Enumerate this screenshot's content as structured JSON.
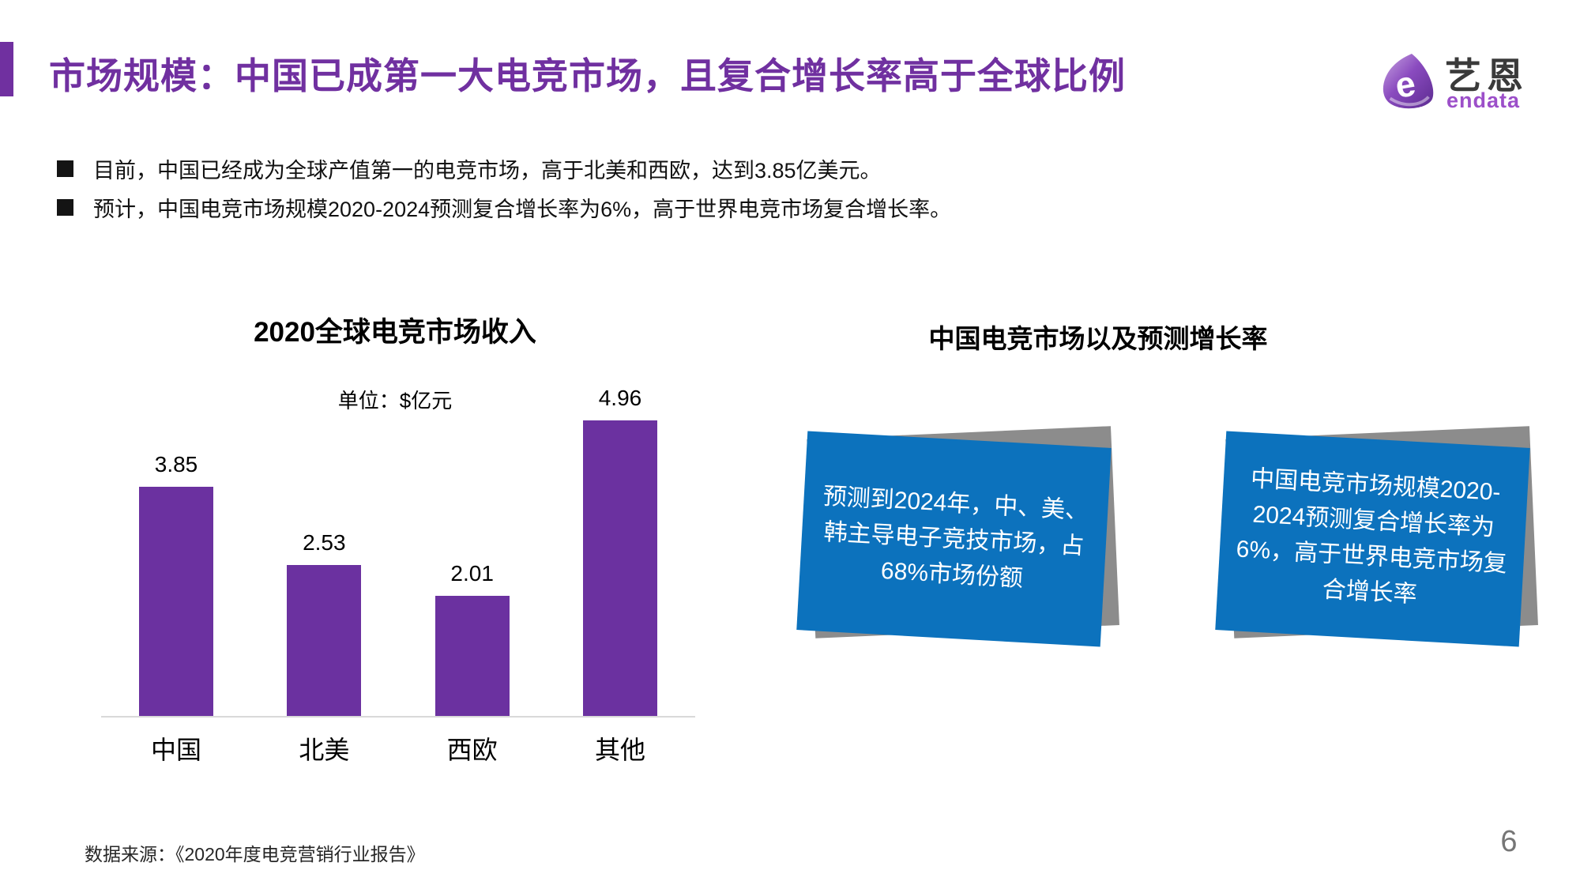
{
  "header": {
    "title": "市场规模：中国已成第一大电竞市场，且复合增长率高于全球比例",
    "accent_color": "#7030A0"
  },
  "logo": {
    "mark_letter": "e",
    "name_cn": "艺恩",
    "name_en": "endata",
    "purple": "#9C4FC9"
  },
  "bullets": {
    "items": [
      "目前，中国已经成为全球产值第一的电竞市场，高于北美和西欧，达到3.85亿美元。",
      "预计，中国电竞市场规模2020-2024预测复合增长率为6%，高于世界电竞市场复合增长率。"
    ]
  },
  "chart_data": {
    "type": "bar",
    "title": "2020全球电竞市场收入",
    "unit_label": "单位：$亿元",
    "categories": [
      "中国",
      "北美",
      "西欧",
      "其他"
    ],
    "values": [
      3.85,
      2.53,
      2.01,
      4.96
    ],
    "bar_color": "#6B31A0",
    "xlabel": "",
    "ylabel": "",
    "ylim": [
      0,
      5
    ],
    "grid": false,
    "value_labels_shown": true,
    "axis_line_color": "#D9D9D9"
  },
  "right_panel": {
    "title": "中国电竞市场以及预测增长率",
    "card_color": "#0C72BD",
    "shadow_color": "#8C8C8C",
    "cards": [
      {
        "text": "预测到2024年，中、美、韩主导电子竞技市场，占68%市场份额"
      },
      {
        "text": "中国电竞市场规模2020-2024预测复合增长率为6%，高于世界电竞市场复合增长率"
      }
    ]
  },
  "footer": {
    "source": "数据来源：《2020年度电竞营销行业报告》",
    "page_number": "6"
  }
}
